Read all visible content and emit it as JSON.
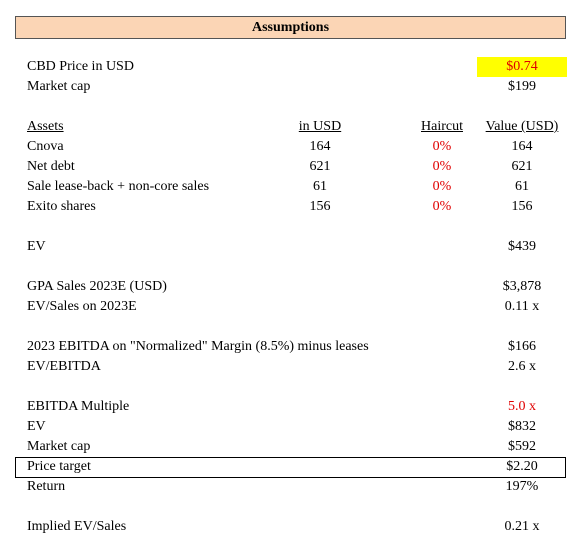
{
  "header": {
    "title": "Assumptions"
  },
  "price": {
    "label": "CBD Price in USD",
    "value": "$0.74"
  },
  "market_cap": {
    "label": "Market cap",
    "value": "$199"
  },
  "assets": {
    "columns": [
      "Assets",
      "in USD",
      "Haircut",
      "Value (USD)"
    ],
    "rows": [
      [
        "Cnova",
        "164",
        "0%",
        "164"
      ],
      [
        "Net debt",
        "621",
        "0%",
        "621"
      ],
      [
        "Sale lease-back + non-core sales",
        "61",
        "0%",
        "61"
      ],
      [
        "Exito shares",
        "156",
        "0%",
        "156"
      ]
    ]
  },
  "ev": {
    "label": "EV",
    "value": "$439"
  },
  "sales": [
    {
      "label": "GPA Sales 2023E (USD)",
      "value": "$3,878"
    },
    {
      "label": "EV/Sales on 2023E",
      "value": "0.11 x"
    }
  ],
  "ebitda": [
    {
      "label": "2023 EBITDA on \"Normalized\" Margin (8.5%) minus leases",
      "value": "$166"
    },
    {
      "label": "EV/EBITDA",
      "value": "2.6 x"
    }
  ],
  "target": [
    {
      "label": "EBITDA Multiple",
      "value": "5.0 x"
    },
    {
      "label": "EV",
      "value": "$832"
    },
    {
      "label": "Market cap",
      "value": "$592"
    },
    {
      "label": "Price target",
      "value": "$2.20"
    },
    {
      "label": "Return",
      "value": "197%"
    }
  ],
  "implied": {
    "label": "Implied EV/Sales",
    "value": "0.21 x"
  }
}
